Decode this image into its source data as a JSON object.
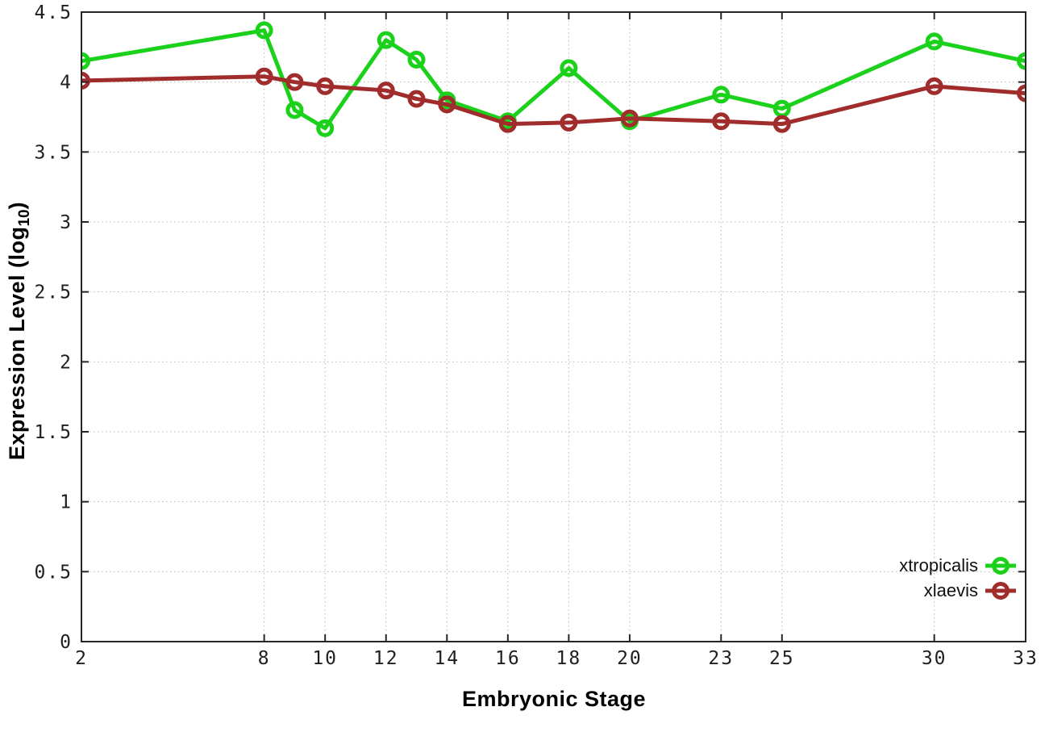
{
  "chart_data": {
    "type": "line",
    "xlabel": "Embryonic Stage",
    "ylabel": "Expression Level (log10)",
    "ylabel_parts": {
      "main": "Expression Level (log",
      "sub": "10",
      "close": ")"
    },
    "xlim": [
      2,
      33
    ],
    "ylim": [
      0,
      4.5
    ],
    "xticks": [
      2,
      8,
      10,
      12,
      14,
      16,
      18,
      20,
      23,
      25,
      30,
      33
    ],
    "yticks": [
      0,
      0.5,
      1,
      1.5,
      2,
      2.5,
      3,
      3.5,
      4,
      4.5
    ],
    "grid": true,
    "grid_style": "dotted",
    "legend_position": "inside-bottom-right",
    "background": "#ffffff",
    "axis_color": "#262626",
    "grid_color": "#b5b5b5",
    "tick_label_color": "#1f1f1f",
    "marker": "open-circle",
    "x": [
      2,
      8,
      9,
      10,
      12,
      13,
      14,
      16,
      18,
      20,
      23,
      25,
      30,
      33
    ],
    "series": [
      {
        "name": "xtropicalis",
        "color": "#1bd11b",
        "values": [
          4.15,
          4.37,
          3.8,
          3.67,
          4.3,
          4.16,
          3.87,
          3.72,
          4.1,
          3.72,
          3.91,
          3.81,
          4.29,
          4.15
        ]
      },
      {
        "name": "xlaevis",
        "color": "#a02c2c",
        "values": [
          4.01,
          4.04,
          4.0,
          3.97,
          3.94,
          3.88,
          3.84,
          3.7,
          3.71,
          3.74,
          3.72,
          3.7,
          3.97,
          3.92
        ]
      }
    ]
  }
}
